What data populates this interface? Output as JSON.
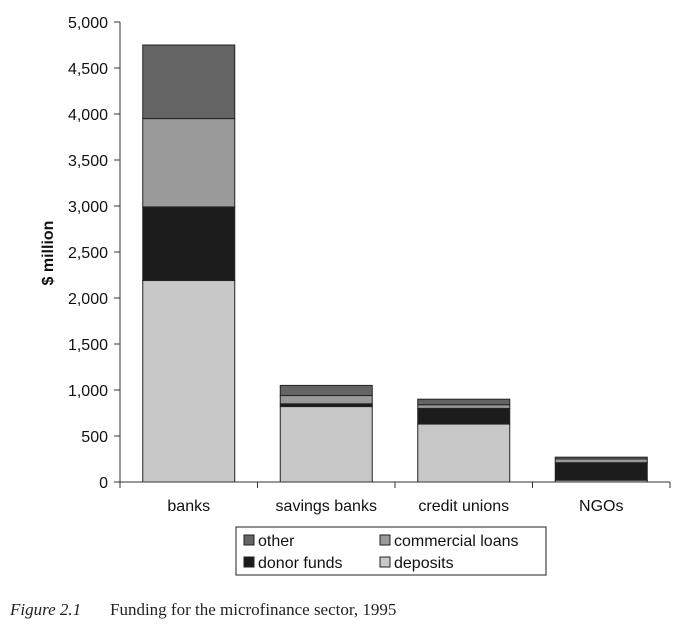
{
  "chart_data": {
    "type": "bar",
    "stacked": true,
    "categories": [
      "banks",
      "savings banks",
      "credit unions",
      "NGOs"
    ],
    "series": [
      {
        "name": "deposits",
        "values": [
          2190,
          820,
          630,
          20
        ],
        "color": "#c8c8c8"
      },
      {
        "name": "donor funds",
        "values": [
          800,
          30,
          170,
          190
        ],
        "color": "#1c1c1c"
      },
      {
        "name": "commercial loans",
        "values": [
          960,
          90,
          40,
          40
        ],
        "color": "#9a9a9a"
      },
      {
        "name": "other",
        "values": [
          800,
          110,
          60,
          20
        ],
        "color": "#646464"
      }
    ],
    "ylabel": "$ million",
    "ylim": [
      0,
      5000
    ],
    "yticks": [
      0,
      500,
      1000,
      1500,
      2000,
      2500,
      3000,
      3500,
      4000,
      4500,
      5000
    ],
    "ytick_labels": [
      "0",
      "500",
      "1,000",
      "1,500",
      "2,000",
      "2,500",
      "3,000",
      "3,500",
      "4,000",
      "4,500",
      "5,000"
    ],
    "legend": {
      "position": "bottom",
      "order": [
        "other",
        "commercial loans",
        "donor funds",
        "deposits"
      ]
    },
    "grid": false
  },
  "caption": {
    "number": "Figure 2.1",
    "text": "Funding for the microfinance sector, 1995"
  }
}
